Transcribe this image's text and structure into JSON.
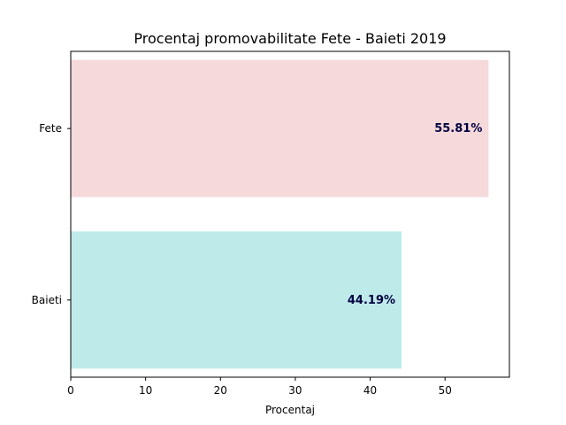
{
  "chart_data": {
    "type": "bar",
    "orientation": "horizontal",
    "title": "Procentaj promovabilitate Fete - Baieti 2019",
    "xlabel": "Procentaj",
    "ylabel": "",
    "categories": [
      "Fete",
      "Baieti"
    ],
    "values": [
      55.81,
      44.19
    ],
    "value_labels": [
      "55.81%",
      "44.19%"
    ],
    "bar_colors": [
      "#f5d9db",
      "#bfeaea"
    ],
    "xlim": [
      0,
      58.6
    ],
    "xticks": [
      0,
      10,
      20,
      30,
      40,
      50
    ],
    "xtick_labels": [
      "0",
      "10",
      "20",
      "30",
      "40",
      "50"
    ],
    "grid": false,
    "legend": "none"
  }
}
